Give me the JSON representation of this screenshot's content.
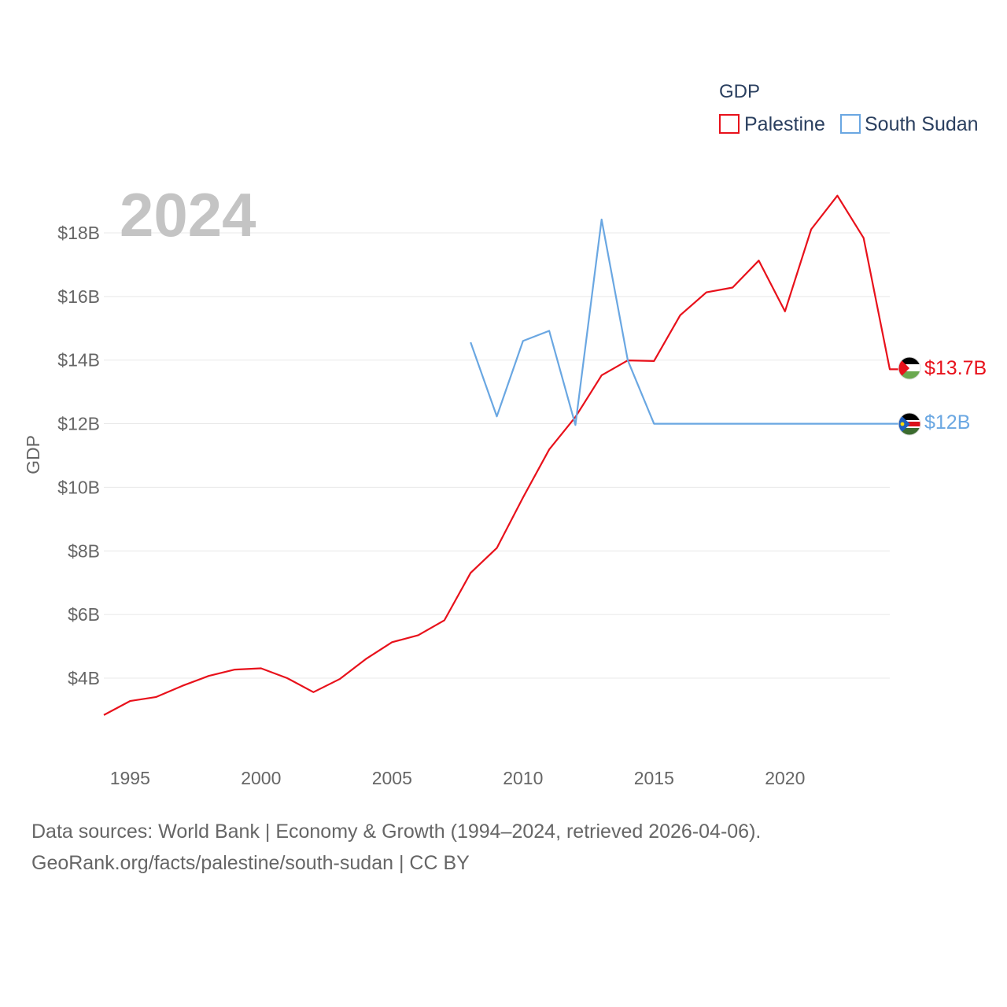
{
  "chart_data": {
    "type": "line",
    "ylabel": "GDP",
    "xlabel": "",
    "legend_title": "GDP",
    "legend_position": "top-right",
    "year_label": "2024",
    "xlim": [
      1994,
      2024
    ],
    "ylim": [
      2000000000,
      20000000000
    ],
    "x_ticks": [
      1995,
      2000,
      2005,
      2010,
      2015,
      2020
    ],
    "y_ticks": [
      {
        "value": 4000000000,
        "label": "$4B"
      },
      {
        "value": 6000000000,
        "label": "$6B"
      },
      {
        "value": 8000000000,
        "label": "$8B"
      },
      {
        "value": 10000000000,
        "label": "$10B"
      },
      {
        "value": 12000000000,
        "label": "$12B"
      },
      {
        "value": 14000000000,
        "label": "$14B"
      },
      {
        "value": 16000000000,
        "label": "$16B"
      },
      {
        "value": 18000000000,
        "label": "$18B"
      }
    ],
    "grid": true,
    "series": [
      {
        "name": "Palestine",
        "color": "#e8111b",
        "end_label": "$13.7B",
        "flag": "palestine-flag",
        "points": [
          [
            1994,
            2840000000.0
          ],
          [
            1995,
            3280000000.0
          ],
          [
            1996,
            3410000000.0
          ],
          [
            1997,
            3760000000.0
          ],
          [
            1998,
            4070000000.0
          ],
          [
            1999,
            4270000000.0
          ],
          [
            2000,
            4310000000.0
          ],
          [
            2001,
            4000000000.0
          ],
          [
            2002,
            3560000000.0
          ],
          [
            2003,
            3970000000.0
          ],
          [
            2004,
            4600000000.0
          ],
          [
            2005,
            5130000000.0
          ],
          [
            2006,
            5350000000.0
          ],
          [
            2007,
            5820000000.0
          ],
          [
            2008,
            7310000000.0
          ],
          [
            2009,
            8090000000.0
          ],
          [
            2010,
            9680000000.0
          ],
          [
            2011,
            11190000000.0
          ],
          [
            2012,
            12210000000.0
          ],
          [
            2013,
            13520000000.0
          ],
          [
            2014,
            13990000000.0
          ],
          [
            2015,
            13970000000.0
          ],
          [
            2016,
            15410000000.0
          ],
          [
            2017,
            16130000000.0
          ],
          [
            2018,
            16280000000.0
          ],
          [
            2019,
            17130000000.0
          ],
          [
            2020,
            15530000000.0
          ],
          [
            2021,
            18110000000.0
          ],
          [
            2022,
            19170000000.0
          ],
          [
            2023,
            17840000000.0
          ],
          [
            2024,
            13710000000.0
          ]
        ]
      },
      {
        "name": "South Sudan",
        "color": "#6aa7e2",
        "end_label": "$12B",
        "flag": "south-sudan-flag",
        "points": [
          [
            2008,
            14560000000.0
          ],
          [
            2009,
            12230000000.0
          ],
          [
            2010,
            14600000000.0
          ],
          [
            2011,
            14920000000.0
          ],
          [
            2012,
            11960000000.0
          ],
          [
            2013,
            18420000000.0
          ],
          [
            2014,
            13990000000.0
          ],
          [
            2015,
            12000000000.0
          ],
          [
            2016,
            12000000000.0
          ],
          [
            2017,
            12000000000.0
          ],
          [
            2018,
            12000000000.0
          ],
          [
            2019,
            12000000000.0
          ],
          [
            2020,
            12000000000.0
          ],
          [
            2021,
            12000000000.0
          ],
          [
            2022,
            12000000000.0
          ],
          [
            2023,
            12000000000.0
          ],
          [
            2024,
            12000000000.0
          ]
        ]
      }
    ]
  },
  "footer": {
    "line1": "Data sources: World Bank | Economy & Growth (1994–2024, retrieved 2026-04-06).",
    "line2": "GeoRank.org/facts/palestine/south-sudan | CC BY"
  }
}
